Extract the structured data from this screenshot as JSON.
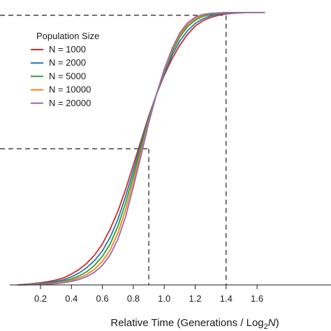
{
  "chart_data": {
    "type": "line",
    "title": "",
    "xlabel_main": "Relative Time (Generations / Log",
    "xlabel_sub": "2",
    "xlabel_italic": "N",
    "xlabel_close": ")",
    "ylabel": "",
    "xlim": [
      0.05,
      1.68
    ],
    "ylim": [
      0,
      1
    ],
    "xticks": [
      "0.2",
      "0.4",
      "0.6",
      "0.8",
      "1.0",
      "1.2",
      "1.4",
      "1.6"
    ],
    "grid": false,
    "legend": {
      "title": "Population Size",
      "placement": "top-left"
    },
    "reference_lines": [
      {
        "x": 0.9,
        "y": 0.5
      },
      {
        "x": 1.4,
        "y": 0.99
      }
    ],
    "x": [
      0.05,
      0.1,
      0.15,
      0.2,
      0.25,
      0.3,
      0.35,
      0.4,
      0.45,
      0.5,
      0.55,
      0.6,
      0.65,
      0.7,
      0.75,
      0.8,
      0.85,
      0.9,
      0.95,
      1.0,
      1.05,
      1.1,
      1.15,
      1.2,
      1.25,
      1.3,
      1.35,
      1.4,
      1.45,
      1.5,
      1.55,
      1.6,
      1.65
    ],
    "series": [
      {
        "name": "N = 1000",
        "color": "#d62728",
        "values": [
          0.0,
          0.002,
          0.005,
          0.008,
          0.012,
          0.018,
          0.026,
          0.04,
          0.057,
          0.08,
          0.11,
          0.15,
          0.205,
          0.27,
          0.35,
          0.44,
          0.53,
          0.62,
          0.7,
          0.77,
          0.83,
          0.88,
          0.92,
          0.95,
          0.97,
          0.982,
          0.99,
          0.995,
          0.998,
          0.999,
          1.0,
          1.0,
          1.0
        ]
      },
      {
        "name": "N = 2000",
        "color": "#1f77b4",
        "values": [
          0.0,
          0.0015,
          0.004,
          0.006,
          0.009,
          0.013,
          0.019,
          0.03,
          0.044,
          0.064,
          0.09,
          0.125,
          0.175,
          0.24,
          0.325,
          0.42,
          0.52,
          0.615,
          0.7,
          0.775,
          0.842,
          0.895,
          0.933,
          0.96,
          0.977,
          0.988,
          0.994,
          0.997,
          0.999,
          1.0,
          1.0,
          1.0,
          1.0
        ]
      },
      {
        "name": "N = 5000",
        "color": "#2ca02c",
        "values": [
          0.0,
          0.001,
          0.003,
          0.004,
          0.006,
          0.009,
          0.014,
          0.022,
          0.033,
          0.049,
          0.072,
          0.105,
          0.15,
          0.215,
          0.3,
          0.4,
          0.505,
          0.61,
          0.7,
          0.782,
          0.853,
          0.91,
          0.948,
          0.972,
          0.986,
          0.993,
          0.997,
          0.999,
          1.0,
          1.0,
          1.0,
          1.0,
          1.0
        ]
      },
      {
        "name": "N = 10000",
        "color": "#ff7f0e",
        "values": [
          0.0,
          0.0005,
          0.002,
          0.003,
          0.004,
          0.007,
          0.011,
          0.017,
          0.026,
          0.039,
          0.058,
          0.087,
          0.128,
          0.19,
          0.275,
          0.38,
          0.49,
          0.602,
          0.7,
          0.787,
          0.86,
          0.918,
          0.955,
          0.978,
          0.99,
          0.996,
          0.998,
          1.0,
          1.0,
          1.0,
          1.0,
          1.0,
          1.0
        ]
      },
      {
        "name": "N = 20000",
        "color": "#9467bd",
        "values": [
          0.0,
          0.0003,
          0.001,
          0.002,
          0.003,
          0.005,
          0.008,
          0.013,
          0.02,
          0.031,
          0.047,
          0.072,
          0.11,
          0.168,
          0.25,
          0.36,
          0.475,
          0.595,
          0.7,
          0.792,
          0.867,
          0.925,
          0.962,
          0.983,
          0.993,
          0.997,
          0.999,
          1.0,
          1.0,
          1.0,
          1.0,
          1.0,
          1.0
        ]
      }
    ]
  }
}
